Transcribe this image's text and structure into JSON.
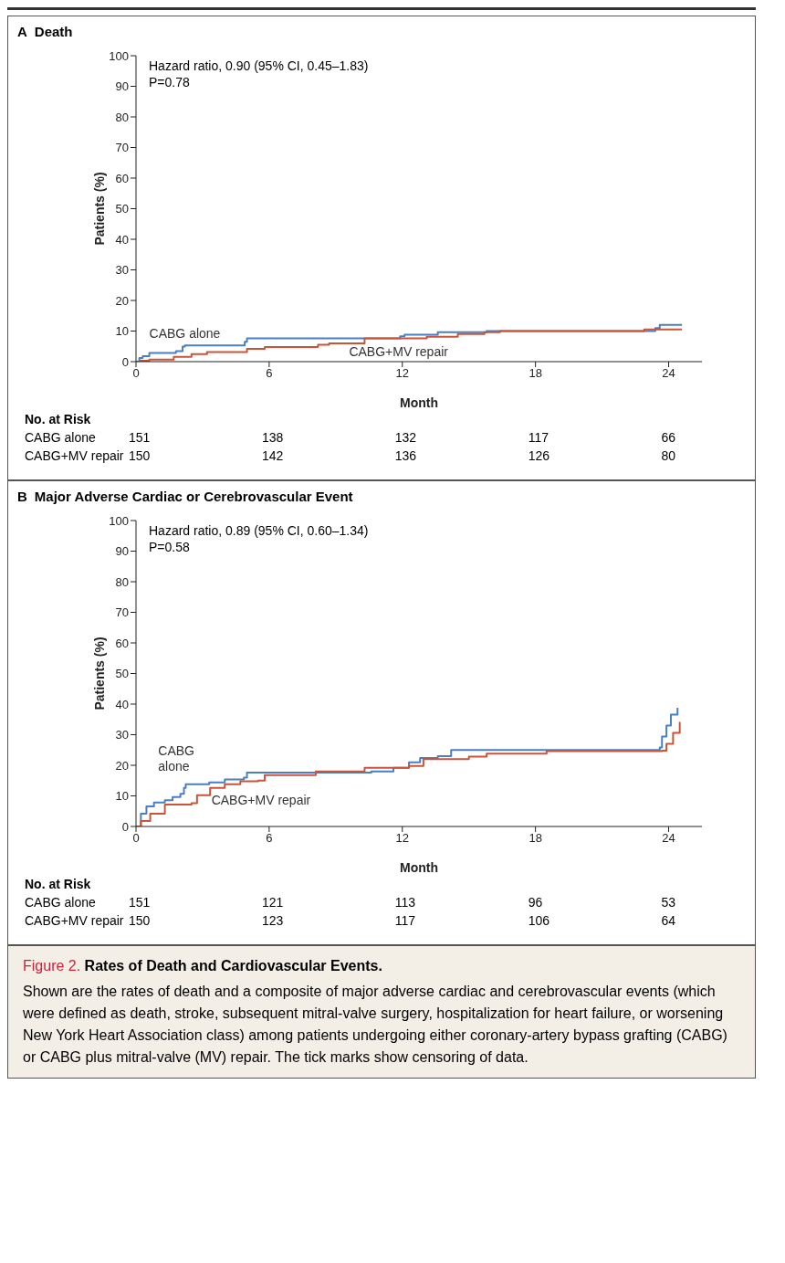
{
  "chart_data": [
    {
      "type": "step",
      "title": "A Death",
      "xlabel": "Month",
      "ylabel": "Patients (%)",
      "xlim": [
        0,
        25.5
      ],
      "xticks": [
        0,
        6,
        12,
        18,
        24
      ],
      "ylim": [
        0,
        100
      ],
      "yticks": [
        0,
        10,
        20,
        30,
        40,
        50,
        60,
        70,
        80,
        90,
        100
      ],
      "series": [
        {
          "name": "CABG alone",
          "color": "#4a7fc1",
          "x": [
            0,
            0.15,
            0.3,
            0.6,
            1.8,
            2.1,
            2.2,
            4.9,
            5.0,
            11.8,
            11.9,
            12.1,
            13.5,
            13.6,
            15.7,
            15.8,
            23.2,
            23.4,
            23.6,
            24.6
          ],
          "values": [
            0,
            1.2,
            1.8,
            2.8,
            3.4,
            4.9,
            5.3,
            6.5,
            7.6,
            7.6,
            8.3,
            8.8,
            8.8,
            9.6,
            9.6,
            10,
            10,
            11,
            12,
            12
          ]
        },
        {
          "name": "CABG+MV repair",
          "color": "#c8553a",
          "x": [
            0,
            0.2,
            0.6,
            1.7,
            2.5,
            3.2,
            5.0,
            5.8,
            8.2,
            8.7,
            10.3,
            13.1,
            14.5,
            15.7,
            16.4,
            22.9,
            24.6
          ],
          "values": [
            0,
            0.3,
            0.7,
            1.6,
            2.5,
            3.1,
            4.2,
            4.8,
            5.5,
            6.0,
            7.6,
            8.1,
            9.0,
            9.6,
            10,
            10.5,
            10.5
          ]
        }
      ],
      "annotations": [
        "Hazard ratio, 0.90 (95% CI, 0.45–1.83)",
        "P=0.78",
        "No. at Risk",
        "CABG alone",
        "151",
        "138",
        "132",
        "117",
        "66",
        "CABG+MV repair",
        "150",
        "142",
        "136",
        "126",
        "80"
      ]
    },
    {
      "type": "step",
      "title": "B Major Adverse Cardiac or Cerebrovascular Event",
      "xlabel": "Month",
      "ylabel": "Patients (%)",
      "xlim": [
        0,
        25.5
      ],
      "xticks": [
        0,
        6,
        12,
        18,
        24
      ],
      "ylim": [
        0,
        100
      ],
      "yticks": [
        0,
        10,
        20,
        30,
        40,
        50,
        60,
        70,
        80,
        90,
        100
      ],
      "series": [
        {
          "name": "CABG alone",
          "color": "#4a7fc1",
          "x": [
            0,
            0.22,
            0.47,
            0.81,
            1.3,
            1.65,
            2.0,
            2.16,
            2.24,
            3.3,
            4.0,
            4.86,
            5.0,
            10.6,
            11.6,
            12.3,
            12.8,
            13.6,
            14.2,
            23.6,
            23.7,
            23.9,
            24.1,
            24.4
          ],
          "values": [
            0,
            4.2,
            6.6,
            7.8,
            8.6,
            9.6,
            10.7,
            12.6,
            13.8,
            14.4,
            15.4,
            16,
            17.6,
            18,
            19.2,
            21,
            22.4,
            23,
            25,
            25.8,
            29.4,
            33,
            36.6,
            38.8
          ]
        },
        {
          "name": "CABG+MV repair",
          "color": "#c8553a",
          "x": [
            0,
            0.22,
            0.64,
            1.3,
            2.5,
            2.75,
            3.34,
            4.0,
            4.7,
            5.5,
            5.8,
            8.1,
            10.3,
            12.3,
            12.95,
            15.0,
            15.8,
            18.5,
            23.7,
            23.9,
            24.2,
            24.5
          ],
          "values": [
            0,
            1.8,
            4.2,
            7.2,
            7.6,
            10.2,
            12.6,
            13.8,
            14.8,
            15,
            16.8,
            18,
            19.2,
            19.8,
            22,
            22.8,
            23.8,
            24.6,
            24.8,
            27,
            30.6,
            34.2
          ]
        }
      ],
      "annotations": [
        "Hazard ratio, 0.89 (95% CI, 0.60–1.34)",
        "P=0.58",
        "No. at Risk",
        "CABG alone",
        "151",
        "121",
        "113",
        "96",
        "53",
        "CABG+MV repair",
        "150",
        "123",
        "117",
        "106",
        "64"
      ]
    },
    {
      "type": "other",
      "title": "Figure 2. Rates of Death and Cardiovascular Events.",
      "annotations": [
        "Shown are the rates of death and a composite of major adverse cardiac and cerebrovascular events (which were defined as death, stroke, subsequent mitral-valve surgery, hospitalization for heart failure, or worsening New York Heart Association class) among patients undergoing either coronary-artery bypass grafting (CABG) or CABG plus mitral-valve (MV) repair. The tick marks show censoring of data."
      ]
    }
  ]
}
